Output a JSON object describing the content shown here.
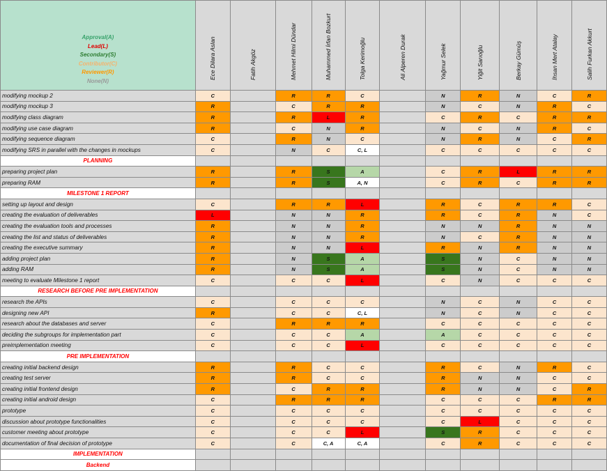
{
  "legend": [
    {
      "label": "Approval(A)",
      "color": "#38a26b"
    },
    {
      "label": "Lead(L)",
      "color": "#e00000"
    },
    {
      "label": "Secondary(S)",
      "color": "#2e7d32"
    },
    {
      "label": "Contributor(C)",
      "color": "#f6b26b"
    },
    {
      "label": "Reviewer(R)",
      "color": "#ff9900"
    },
    {
      "label": "None(N)",
      "color": "#999999"
    }
  ],
  "members": [
    "Ece Dilara Aslan",
    "Fatih Akgöz",
    "Mehmet Hilmi Dündar",
    "Muhammed İrfan Bozkurt",
    "Tolga Kerimoğlu",
    "Ali Alperen Durak",
    "Yağmur Selek",
    "Yiğit Sarıoğlu",
    "Berkay Gümüş",
    "İhsan Mert Atalay",
    "Salih Furkan Akkurt"
  ],
  "role_colors": {
    "R": "#ff9900",
    "C": "#fce5cd",
    "N": "#cccccc",
    "S": "#38761d",
    "L": "#ff0000",
    "A": "#b6d7a8",
    "W": "#ffffff",
    "E": "#d9d9d9"
  },
  "rows": [
    {
      "task": "modifying mockup 2",
      "cells": [
        [
          "C",
          "C"
        ],
        [
          "",
          ""
        ],
        [
          "R",
          "R"
        ],
        [
          "R",
          "R"
        ],
        [
          "C",
          "C"
        ],
        [
          "",
          ""
        ],
        [
          "N",
          "N"
        ],
        [
          "R",
          "R"
        ],
        [
          "N",
          "N"
        ],
        [
          "C",
          "C"
        ],
        [
          "R",
          "R"
        ]
      ]
    },
    {
      "task": "modifying mockup 3",
      "cells": [
        [
          "R",
          "R"
        ],
        [
          "",
          ""
        ],
        [
          "C",
          "C"
        ],
        [
          "R",
          "R"
        ],
        [
          "R",
          "R"
        ],
        [
          "",
          ""
        ],
        [
          "N",
          "N"
        ],
        [
          "C",
          "C"
        ],
        [
          "N",
          "N"
        ],
        [
          "R",
          "R"
        ],
        [
          "C",
          "C"
        ]
      ]
    },
    {
      "task": "modifying class diagram",
      "cells": [
        [
          "R",
          "R"
        ],
        [
          "",
          ""
        ],
        [
          "R",
          "R"
        ],
        [
          "L",
          "L"
        ],
        [
          "R",
          "R"
        ],
        [
          "",
          ""
        ],
        [
          "C",
          "C"
        ],
        [
          "R",
          "R"
        ],
        [
          "C",
          "C"
        ],
        [
          "R",
          "R"
        ],
        [
          "R",
          "R"
        ]
      ]
    },
    {
      "task": "modifying use case diagram",
      "cells": [
        [
          "R",
          "R"
        ],
        [
          "",
          ""
        ],
        [
          "C",
          "C"
        ],
        [
          "N",
          "N"
        ],
        [
          "R",
          "R"
        ],
        [
          "",
          ""
        ],
        [
          "N",
          "N"
        ],
        [
          "C",
          "C"
        ],
        [
          "N",
          "N"
        ],
        [
          "R",
          "R"
        ],
        [
          "C",
          "C"
        ]
      ]
    },
    {
      "task": "modifying sequence diagram",
      "cells": [
        [
          "C",
          "C"
        ],
        [
          "",
          ""
        ],
        [
          "R",
          "R"
        ],
        [
          "N",
          "N"
        ],
        [
          "C",
          "C"
        ],
        [
          "",
          ""
        ],
        [
          "N",
          "N"
        ],
        [
          "R",
          "R"
        ],
        [
          "N",
          "N"
        ],
        [
          "C",
          "C"
        ],
        [
          "R",
          "R"
        ]
      ]
    },
    {
      "task": "modifying SRS in parallel with the changes in mockups",
      "cells": [
        [
          "C",
          "C"
        ],
        [
          "",
          ""
        ],
        [
          "N",
          "N"
        ],
        [
          "C",
          "C"
        ],
        [
          "C, L",
          "W"
        ],
        [
          "",
          ""
        ],
        [
          "C",
          "C"
        ],
        [
          "C",
          "C"
        ],
        [
          "C",
          "C"
        ],
        [
          "C",
          "C"
        ],
        [
          "C",
          "C"
        ]
      ]
    },
    {
      "section": "PLANNING"
    },
    {
      "task": "preparing project plan",
      "cells": [
        [
          "R",
          "R"
        ],
        [
          "",
          ""
        ],
        [
          "R",
          "R"
        ],
        [
          "S",
          "S"
        ],
        [
          "A",
          "A"
        ],
        [
          "",
          ""
        ],
        [
          "C",
          "C"
        ],
        [
          "R",
          "R"
        ],
        [
          "L",
          "L"
        ],
        [
          "R",
          "R"
        ],
        [
          "R",
          "R"
        ]
      ]
    },
    {
      "task": "preparing RAM",
      "cells": [
        [
          "R",
          "R"
        ],
        [
          "",
          ""
        ],
        [
          "R",
          "R"
        ],
        [
          "S",
          "S"
        ],
        [
          "A, N",
          "W"
        ],
        [
          "",
          ""
        ],
        [
          "C",
          "C"
        ],
        [
          "R",
          "R"
        ],
        [
          "C",
          "C"
        ],
        [
          "R",
          "R"
        ],
        [
          "R",
          "R"
        ]
      ]
    },
    {
      "section": "MILESTONE 1 REPORT"
    },
    {
      "task": "setting up layout and design",
      "cells": [
        [
          "C",
          "C"
        ],
        [
          "",
          ""
        ],
        [
          "R",
          "R"
        ],
        [
          "R",
          "R"
        ],
        [
          "L",
          "L"
        ],
        [
          "",
          ""
        ],
        [
          "R",
          "R"
        ],
        [
          "C",
          "C"
        ],
        [
          "R",
          "R"
        ],
        [
          "R",
          "R"
        ],
        [
          "C",
          "C"
        ]
      ]
    },
    {
      "task": "creating the evaluation of deliverables",
      "cells": [
        [
          "L",
          "L"
        ],
        [
          "",
          ""
        ],
        [
          "N",
          "N"
        ],
        [
          "N",
          "N"
        ],
        [
          "R",
          "R"
        ],
        [
          "",
          ""
        ],
        [
          "R",
          "R"
        ],
        [
          "C",
          "C"
        ],
        [
          "R",
          "R"
        ],
        [
          "N",
          "N"
        ],
        [
          "C",
          "C"
        ]
      ]
    },
    {
      "task": "creating the evaluation tools and processes",
      "cells": [
        [
          "R",
          "R"
        ],
        [
          "",
          ""
        ],
        [
          "N",
          "N"
        ],
        [
          "N",
          "N"
        ],
        [
          "R",
          "R"
        ],
        [
          "",
          ""
        ],
        [
          "N",
          "N"
        ],
        [
          "N",
          "N"
        ],
        [
          "R",
          "R"
        ],
        [
          "N",
          "N"
        ],
        [
          "N",
          "N"
        ]
      ]
    },
    {
      "task": "creating the list and status of deliverables",
      "cells": [
        [
          "R",
          "R"
        ],
        [
          "",
          ""
        ],
        [
          "N",
          "N"
        ],
        [
          "N",
          "N"
        ],
        [
          "R",
          "R"
        ],
        [
          "",
          ""
        ],
        [
          "N",
          "N"
        ],
        [
          "C",
          "C"
        ],
        [
          "R",
          "R"
        ],
        [
          "N",
          "N"
        ],
        [
          "N",
          "N"
        ]
      ]
    },
    {
      "task": "creating the executive summary",
      "cells": [
        [
          "R",
          "R"
        ],
        [
          "",
          ""
        ],
        [
          "N",
          "N"
        ],
        [
          "N",
          "N"
        ],
        [
          "L",
          "L"
        ],
        [
          "",
          ""
        ],
        [
          "R",
          "R"
        ],
        [
          "N",
          "N"
        ],
        [
          "R",
          "R"
        ],
        [
          "N",
          "N"
        ],
        [
          "N",
          "N"
        ]
      ]
    },
    {
      "task": "adding project plan",
      "cells": [
        [
          "R",
          "R"
        ],
        [
          "",
          ""
        ],
        [
          "N",
          "N"
        ],
        [
          "S",
          "S"
        ],
        [
          "A",
          "A"
        ],
        [
          "",
          ""
        ],
        [
          "S",
          "S"
        ],
        [
          "N",
          "N"
        ],
        [
          "C",
          "C"
        ],
        [
          "N",
          "N"
        ],
        [
          "N",
          "N"
        ]
      ]
    },
    {
      "task": "adding RAM",
      "cells": [
        [
          "R",
          "R"
        ],
        [
          "",
          ""
        ],
        [
          "N",
          "N"
        ],
        [
          "S",
          "S"
        ],
        [
          "A",
          "A"
        ],
        [
          "",
          ""
        ],
        [
          "S",
          "S"
        ],
        [
          "N",
          "N"
        ],
        [
          "C",
          "C"
        ],
        [
          "N",
          "N"
        ],
        [
          "N",
          "N"
        ]
      ]
    },
    {
      "task": "meeting to evaluate Milestone 1 report",
      "cells": [
        [
          "C",
          "C"
        ],
        [
          "",
          ""
        ],
        [
          "C",
          "C"
        ],
        [
          "C",
          "C"
        ],
        [
          "L",
          "L"
        ],
        [
          "",
          ""
        ],
        [
          "C",
          "C"
        ],
        [
          "N",
          "N"
        ],
        [
          "C",
          "C"
        ],
        [
          "C",
          "C"
        ],
        [
          "C",
          "C"
        ]
      ]
    },
    {
      "section": "RESEARCH BEFORE PRE IMPLEMENTATION"
    },
    {
      "task": "research the APIs",
      "cells": [
        [
          "C",
          "C"
        ],
        [
          "",
          ""
        ],
        [
          "C",
          "C"
        ],
        [
          "C",
          "C"
        ],
        [
          "C",
          "C"
        ],
        [
          "",
          ""
        ],
        [
          "N",
          "N"
        ],
        [
          "C",
          "C"
        ],
        [
          "N",
          "N"
        ],
        [
          "C",
          "C"
        ],
        [
          "C",
          "C"
        ]
      ]
    },
    {
      "task": "designing new API",
      "cells": [
        [
          "R",
          "R"
        ],
        [
          "",
          ""
        ],
        [
          "C",
          "C"
        ],
        [
          "C",
          "C"
        ],
        [
          "C, L",
          "W"
        ],
        [
          "",
          ""
        ],
        [
          "N",
          "N"
        ],
        [
          "C",
          "C"
        ],
        [
          "N",
          "N"
        ],
        [
          "C",
          "C"
        ],
        [
          "C",
          "C"
        ]
      ]
    },
    {
      "task": "research about the databases and server",
      "cells": [
        [
          "C",
          "C"
        ],
        [
          "",
          ""
        ],
        [
          "R",
          "R"
        ],
        [
          "R",
          "R"
        ],
        [
          "R",
          "R"
        ],
        [
          "",
          ""
        ],
        [
          "C",
          "C"
        ],
        [
          "C",
          "C"
        ],
        [
          "C",
          "C"
        ],
        [
          "C",
          "C"
        ],
        [
          "C",
          "C"
        ]
      ]
    },
    {
      "task": "deciding the subgroups for implementation part",
      "cells": [
        [
          "C",
          "C"
        ],
        [
          "",
          ""
        ],
        [
          "C",
          "C"
        ],
        [
          "C",
          "C"
        ],
        [
          "A",
          "A"
        ],
        [
          "",
          ""
        ],
        [
          "A",
          "A"
        ],
        [
          "C",
          "C"
        ],
        [
          "C",
          "C"
        ],
        [
          "C",
          "C"
        ],
        [
          "C",
          "C"
        ]
      ]
    },
    {
      "task": "preimplementation meeting",
      "cells": [
        [
          "C",
          "C"
        ],
        [
          "",
          ""
        ],
        [
          "C",
          "C"
        ],
        [
          "C",
          "C"
        ],
        [
          "L",
          "L"
        ],
        [
          "",
          ""
        ],
        [
          "C",
          "C"
        ],
        [
          "C",
          "C"
        ],
        [
          "C",
          "C"
        ],
        [
          "C",
          "C"
        ],
        [
          "C",
          "C"
        ]
      ]
    },
    {
      "section": "PRE IMPLEMENTATION"
    },
    {
      "task": "creating initial backend design",
      "cells": [
        [
          "R",
          "R"
        ],
        [
          "",
          ""
        ],
        [
          "R",
          "R"
        ],
        [
          "C",
          "C"
        ],
        [
          "C",
          "C"
        ],
        [
          "",
          ""
        ],
        [
          "R",
          "R"
        ],
        [
          "C",
          "C"
        ],
        [
          "N",
          "N"
        ],
        [
          "R",
          "R"
        ],
        [
          "C",
          "C"
        ]
      ]
    },
    {
      "task": "creating test server",
      "cells": [
        [
          "R",
          "R"
        ],
        [
          "",
          ""
        ],
        [
          "R",
          "R"
        ],
        [
          "C",
          "C"
        ],
        [
          "C",
          "C"
        ],
        [
          "",
          ""
        ],
        [
          "R",
          "R"
        ],
        [
          "N",
          "N"
        ],
        [
          "N",
          "N"
        ],
        [
          "C",
          "C"
        ],
        [
          "C",
          "C"
        ]
      ]
    },
    {
      "task": "creating initial frontend design",
      "cells": [
        [
          "R",
          "R"
        ],
        [
          "",
          ""
        ],
        [
          "C",
          "C"
        ],
        [
          "R",
          "R"
        ],
        [
          "R",
          "R"
        ],
        [
          "",
          ""
        ],
        [
          "R",
          "R"
        ],
        [
          "N",
          "N"
        ],
        [
          "N",
          "N"
        ],
        [
          "C",
          "C"
        ],
        [
          "R",
          "R"
        ]
      ]
    },
    {
      "task": "creating initial android design",
      "cells": [
        [
          "C",
          "C"
        ],
        [
          "",
          ""
        ],
        [
          "R",
          "R"
        ],
        [
          "R",
          "R"
        ],
        [
          "R",
          "R"
        ],
        [
          "",
          ""
        ],
        [
          "C",
          "C"
        ],
        [
          "C",
          "C"
        ],
        [
          "C",
          "C"
        ],
        [
          "R",
          "R"
        ],
        [
          "R",
          "R"
        ]
      ]
    },
    {
      "task": "prototype",
      "cells": [
        [
          "C",
          "C"
        ],
        [
          "",
          ""
        ],
        [
          "C",
          "C"
        ],
        [
          "C",
          "C"
        ],
        [
          "C",
          "C"
        ],
        [
          "",
          ""
        ],
        [
          "C",
          "C"
        ],
        [
          "C",
          "C"
        ],
        [
          "C",
          "C"
        ],
        [
          "C",
          "C"
        ],
        [
          "C",
          "C"
        ]
      ]
    },
    {
      "task": "discussion about prototype functionalities",
      "cells": [
        [
          "C",
          "C"
        ],
        [
          "",
          ""
        ],
        [
          "C",
          "C"
        ],
        [
          "C",
          "C"
        ],
        [
          "C",
          "C"
        ],
        [
          "",
          ""
        ],
        [
          "C",
          "C"
        ],
        [
          "L",
          "L"
        ],
        [
          "C",
          "C"
        ],
        [
          "C",
          "C"
        ],
        [
          "C",
          "C"
        ]
      ]
    },
    {
      "task": "customer meeting about prototype",
      "cells": [
        [
          "C",
          "C"
        ],
        [
          "",
          ""
        ],
        [
          "C",
          "C"
        ],
        [
          "C",
          "C"
        ],
        [
          "L",
          "L"
        ],
        [
          "",
          ""
        ],
        [
          "S",
          "S"
        ],
        [
          "R",
          "R"
        ],
        [
          "C",
          "C"
        ],
        [
          "C",
          "C"
        ],
        [
          "C",
          "C"
        ]
      ]
    },
    {
      "task": "documentation of final decision of prototype",
      "cells": [
        [
          "C",
          "C"
        ],
        [
          "",
          ""
        ],
        [
          "C",
          "C"
        ],
        [
          "C, A",
          "W"
        ],
        [
          "C, A",
          "W"
        ],
        [
          "",
          ""
        ],
        [
          "C",
          "C"
        ],
        [
          "R",
          "R"
        ],
        [
          "C",
          "C"
        ],
        [
          "C",
          "C"
        ],
        [
          "C",
          "C"
        ]
      ]
    },
    {
      "section": "IMPLEMENTATION"
    },
    {
      "section": "Backend"
    }
  ]
}
